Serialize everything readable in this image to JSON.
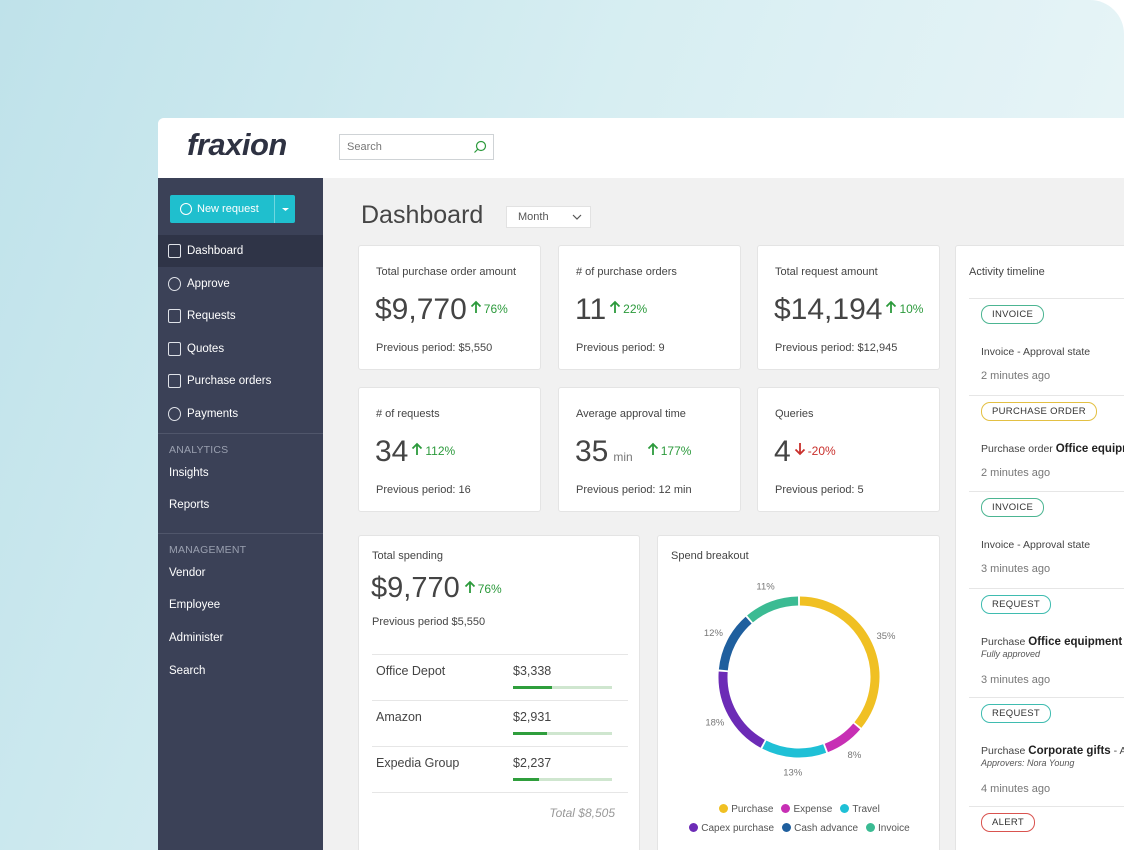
{
  "header": {
    "logo": "fraxion",
    "search_placeholder": "Search"
  },
  "sidebar": {
    "new_request": "New request",
    "nav": [
      "Dashboard",
      "Approve",
      "Requests",
      "Quotes",
      "Purchase orders",
      "Payments"
    ],
    "sections": [
      {
        "title": "ANALYTICS",
        "items": [
          "Insights",
          "Reports"
        ]
      },
      {
        "title": "MANAGEMENT",
        "items": [
          "Vendor",
          "Employee",
          "Administer",
          "Search"
        ]
      }
    ]
  },
  "dashboard": {
    "title": "Dashboard",
    "period": "Month",
    "kpis": [
      {
        "label": "Total purchase order amount",
        "value": "$9,770",
        "change": "76%",
        "direction": "up",
        "previous": "Previous period: $5,550"
      },
      {
        "label": "# of purchase orders",
        "value": "11",
        "change": "22%",
        "direction": "up",
        "previous": "Previous period: 9"
      },
      {
        "label": "Total request amount",
        "value": "$14,194",
        "change": "10%",
        "direction": "up",
        "previous": "Previous period: $12,945"
      },
      {
        "label": "# of requests",
        "value": "34",
        "change": "112%",
        "direction": "up",
        "previous": "Previous period: 16"
      },
      {
        "label": "Average approval time",
        "value": "35",
        "unit": "min",
        "change": "177%",
        "direction": "up",
        "previous": "Previous period: 12 min"
      },
      {
        "label": "Queries",
        "value": "4",
        "change": "-20%",
        "direction": "down",
        "previous": "Previous period: 5"
      }
    ],
    "total_spending": {
      "title": "Total spending",
      "value": "$9,770",
      "change": "76%",
      "previous": "Previous period $5,550",
      "vendors": [
        {
          "name": "Office Depot",
          "amount": {
            "value": 3338,
            "label": "$3,338"
          }
        },
        {
          "name": "Amazon",
          "amount": {
            "value": 2931,
            "label": "$2,931"
          }
        },
        {
          "name": "Expedia Group",
          "amount": {
            "value": 2237,
            "label": "$2,237"
          }
        }
      ],
      "total": {
        "value": 8505,
        "label": "Total $8,505"
      }
    },
    "spend_breakout": {
      "type": "pie",
      "title": "Spend breakout",
      "categories": [
        "Purchase",
        "Expense",
        "Travel",
        "Capex purchase",
        "Cash advance",
        "Invoice"
      ],
      "values": [
        35,
        8,
        13,
        18,
        12,
        11
      ],
      "value_labels": [
        "35%",
        "8%",
        "13%",
        "18%",
        "12%",
        "11%"
      ],
      "colors": [
        "#f0c023",
        "#c72fb4",
        "#1fc0d6",
        "#6c2bb6",
        "#1f5f9e",
        "#3bbb93"
      ]
    },
    "activity": {
      "title": "Activity timeline",
      "items": [
        {
          "badge": "INVOICE",
          "badge_color": "#4cb592",
          "text": "Invoice - Approval state",
          "time": "2 minutes ago"
        },
        {
          "badge": "PURCHASE ORDER",
          "badge_color": "#e3c043",
          "text": "Purchase order",
          "bold": "Office equipment",
          "time": "2 minutes ago"
        },
        {
          "badge": "INVOICE",
          "badge_color": "#4cb592",
          "text": "Invoice - Approval state",
          "time": "3 minutes ago"
        },
        {
          "badge": "REQUEST",
          "badge_color": "#3fbcb0",
          "text": "Purchase",
          "bold": "Office equipment",
          "sub": "Fully approved",
          "time": "3 minutes ago"
        },
        {
          "badge": "REQUEST",
          "badge_color": "#3fbcb0",
          "text": "Purchase",
          "bold": "Corporate gifts",
          "tail": "- A",
          "sub": "Approvers: Nora Young",
          "time": "4 minutes ago"
        },
        {
          "badge": "ALERT",
          "badge_color": "#d9534f"
        }
      ]
    }
  }
}
